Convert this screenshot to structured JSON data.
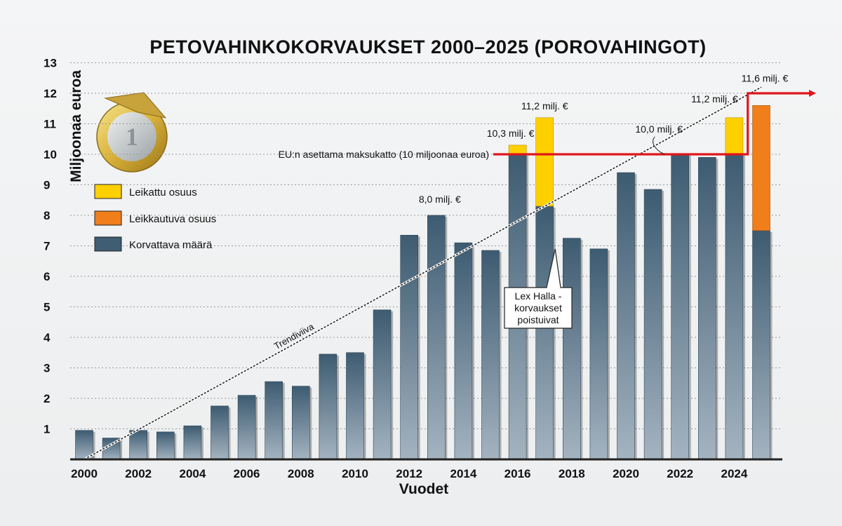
{
  "chart_data": {
    "type": "bar",
    "title": "PETOVAHINKOKORVAUKSET 2000–2025 (POROVAHINGOT)",
    "xlabel": "Vuodet",
    "ylabel": "Miljoonaa euroa",
    "ylim": [
      0,
      13
    ],
    "yticks": [
      1,
      2,
      3,
      4,
      5,
      6,
      7,
      8,
      9,
      10,
      11,
      12,
      13
    ],
    "x_tick_labels": [
      "2000",
      "2002",
      "2004",
      "2006",
      "2008",
      "2010",
      "2012",
      "2014",
      "2016",
      "2018",
      "2020",
      "2022",
      "2024"
    ],
    "categories": [
      "2000",
      "2001",
      "2002",
      "2003",
      "2004",
      "2005",
      "2006",
      "2007",
      "2008",
      "2009",
      "2010",
      "2011",
      "2012",
      "2013",
      "2014",
      "2015",
      "2016",
      "2017",
      "2018",
      "2019",
      "2020",
      "2021",
      "2022",
      "2023",
      "2024",
      "2025"
    ],
    "series": [
      {
        "name": "Korvattava määrä",
        "color": "#3f5e74",
        "values": [
          0.95,
          0.7,
          0.95,
          0.9,
          1.1,
          1.75,
          2.1,
          2.55,
          2.4,
          3.45,
          3.5,
          4.9,
          7.35,
          8.0,
          7.1,
          6.85,
          10.0,
          8.3,
          7.25,
          6.9,
          9.4,
          8.85,
          10.0,
          9.9,
          10.0,
          7.5
        ]
      },
      {
        "name": "Leikattu osuus",
        "color": "#ffd000",
        "values": [
          0,
          0,
          0,
          0,
          0,
          0,
          0,
          0,
          0,
          0,
          0,
          0,
          0,
          0,
          0,
          0,
          0.3,
          2.9,
          0,
          0,
          0,
          0,
          0,
          0,
          1.2,
          0
        ]
      },
      {
        "name": "Leikkautuva osuus",
        "color": "#f07e1a",
        "values": [
          0,
          0,
          0,
          0,
          0,
          0,
          0,
          0,
          0,
          0,
          0,
          0,
          0,
          0,
          0,
          0,
          0,
          0,
          0,
          0,
          0,
          0,
          0,
          0,
          0,
          4.1
        ]
      }
    ],
    "legend": [
      {
        "label": "Leikattu osuus",
        "color": "#ffd000"
      },
      {
        "label": "Leikkautuva osuus",
        "color": "#f07e1a"
      },
      {
        "label": "Korvattava määrä",
        "color": "#3f5e74"
      }
    ],
    "cap": {
      "value": 10,
      "label": "EU:n asettama maksukatto (10 miljoonaa euroa)",
      "color": "#e0161b"
    },
    "trend": {
      "label": "Trendiviiva",
      "from": {
        "year": 2000,
        "value": 0
      },
      "to": {
        "year": 2025,
        "value": 12.2
      }
    },
    "annotations": [
      {
        "year": 2013,
        "value": 8.0,
        "text": "8,0 milj. €"
      },
      {
        "year": 2016,
        "value": 10.3,
        "text": "10,3 milj. €"
      },
      {
        "year": 2017,
        "value": 11.2,
        "text": "11,2 milj. €"
      },
      {
        "year": 2022,
        "value": 10.0,
        "text": "10,0 milj. €"
      },
      {
        "year": 2024,
        "value": 11.2,
        "text": "11,2 milj. €"
      },
      {
        "year": 2025,
        "value": 11.6,
        "text": "11,6 milj. €"
      }
    ],
    "callout": {
      "year": 2017,
      "lines": [
        "Lex Halla -",
        "korvaukset",
        "poistuivat"
      ]
    }
  }
}
